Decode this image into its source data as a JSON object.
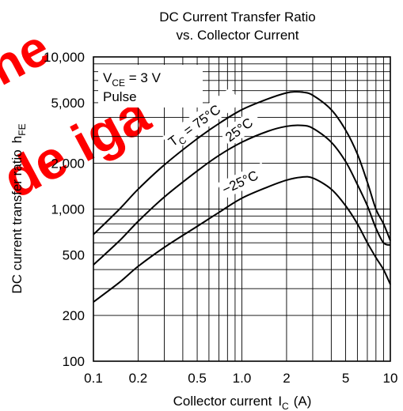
{
  "chart_data": {
    "type": "line",
    "title_line1": "DC Current Transfer Ratio",
    "title_line2": "vs. Collector Current",
    "xlabel": "Collector current",
    "xlabel_symbol": "I",
    "xlabel_sub": "C",
    "xlabel_unit": "(A)",
    "ylabel": "DC current transfer ratio",
    "ylabel_symbol": "h",
    "ylabel_sub": "FE",
    "x_scale": "log",
    "y_scale": "log",
    "xlim": [
      0.1,
      10
    ],
    "ylim": [
      100,
      10000
    ],
    "grid": true,
    "x_ticks": [
      {
        "value": 0.1,
        "label": "0.1"
      },
      {
        "value": 0.2,
        "label": "0.2"
      },
      {
        "value": 0.5,
        "label": "0.5"
      },
      {
        "value": 1.0,
        "label": "1.0"
      },
      {
        "value": 2,
        "label": "2"
      },
      {
        "value": 5,
        "label": "5"
      },
      {
        "value": 10,
        "label": "10"
      }
    ],
    "y_ticks": [
      {
        "value": 100,
        "label": "100"
      },
      {
        "value": 200,
        "label": "200"
      },
      {
        "value": 500,
        "label": "500"
      },
      {
        "value": 1000,
        "label": "1,000"
      },
      {
        "value": 2000,
        "label": "2,000"
      },
      {
        "value": 5000,
        "label": "5,000"
      },
      {
        "value": 10000,
        "label": "10,000"
      }
    ],
    "conditions": {
      "vce_symbol": "V",
      "vce_sub": "CE",
      "vce_value": " = 3 V",
      "mode": "Pulse"
    },
    "series": [
      {
        "name": "75°C",
        "label_prefix": "T",
        "label_sub": "C",
        "label_text": " = 75°C",
        "x": [
          0.1,
          0.15,
          0.2,
          0.3,
          0.5,
          0.7,
          1.0,
          1.5,
          2.0,
          2.3,
          2.6,
          3.0,
          4.0,
          5.0,
          6.0,
          7.0,
          8.0,
          9.0,
          10.0
        ],
        "y": [
          680,
          1000,
          1350,
          1950,
          2900,
          3650,
          4500,
          5300,
          5800,
          5900,
          5850,
          5600,
          4500,
          3300,
          2300,
          1500,
          1000,
          800,
          620
        ]
      },
      {
        "name": "25°C",
        "label_text": "25°C",
        "x": [
          0.1,
          0.15,
          0.2,
          0.3,
          0.5,
          0.7,
          1.0,
          1.5,
          2.0,
          2.5,
          3.0,
          4.0,
          5.0,
          6.0,
          7.0,
          8.0,
          9.0,
          10.0
        ],
        "y": [
          430,
          620,
          830,
          1200,
          1780,
          2250,
          2750,
          3250,
          3500,
          3550,
          3400,
          2750,
          2050,
          1450,
          1050,
          750,
          600,
          580
        ]
      },
      {
        "name": "-25°C",
        "label_text": "−25°C",
        "x": [
          0.1,
          0.15,
          0.2,
          0.3,
          0.5,
          0.7,
          1.0,
          1.5,
          2.0,
          2.5,
          3.0,
          4.0,
          5.0,
          6.0,
          7.0,
          8.0,
          9.0,
          10.0
        ],
        "y": [
          245,
          330,
          420,
          560,
          770,
          950,
          1180,
          1400,
          1550,
          1620,
          1600,
          1350,
          1050,
          800,
          600,
          480,
          400,
          320
        ]
      }
    ]
  },
  "watermark": {
    "color": "#ff0000",
    "fragments": [
      "ne",
      "de iga"
    ]
  }
}
